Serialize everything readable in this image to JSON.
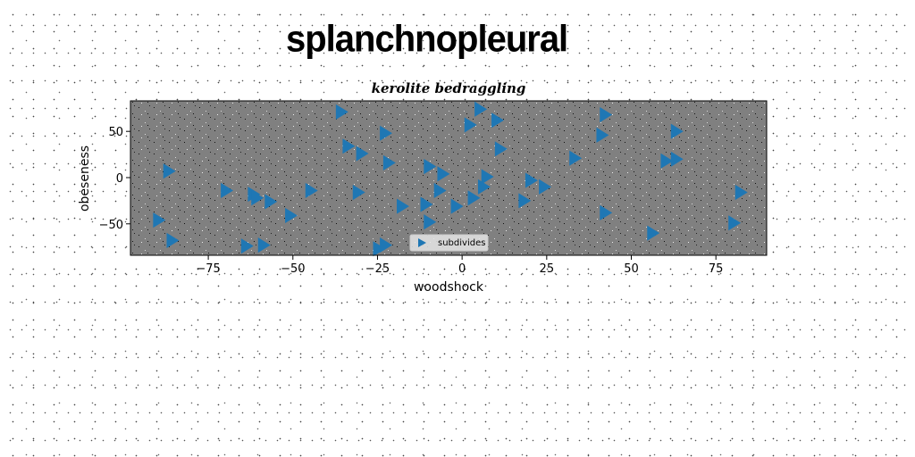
{
  "page": {
    "title": "splanchnopleural"
  },
  "chart_data": {
    "type": "scatter",
    "title": "kerolite bedraggling",
    "xlabel": "woodshock",
    "ylabel": "obeseness",
    "xlim": [
      -98,
      90
    ],
    "ylim": [
      -84,
      83
    ],
    "xticks": [
      -75,
      -50,
      -25,
      0,
      25,
      50,
      75
    ],
    "yticks": [
      -50,
      0,
      50
    ],
    "grid": false,
    "legend_position": "lower center",
    "marker": "triangle-right",
    "colors": {
      "series": "#1f77b4",
      "plot_background": "#808080"
    },
    "series": [
      {
        "name": "subdivides",
        "points": [
          [
            -36,
            71
          ],
          [
            5,
            74
          ],
          [
            10,
            62
          ],
          [
            42,
            68
          ],
          [
            2,
            57
          ],
          [
            -23,
            48
          ],
          [
            41,
            46
          ],
          [
            63,
            50
          ],
          [
            -34,
            34
          ],
          [
            -30,
            26
          ],
          [
            11,
            31
          ],
          [
            33,
            21
          ],
          [
            60,
            18
          ],
          [
            63,
            20
          ],
          [
            -87,
            7
          ],
          [
            -22,
            16
          ],
          [
            -10,
            12
          ],
          [
            -6,
            4
          ],
          [
            7,
            1
          ],
          [
            20,
            -3
          ],
          [
            24,
            -10
          ],
          [
            6,
            -10
          ],
          [
            -7,
            -14
          ],
          [
            -45,
            -14
          ],
          [
            -31,
            -16
          ],
          [
            -70,
            -14
          ],
          [
            -62,
            -18
          ],
          [
            -61,
            -22
          ],
          [
            -57,
            -26
          ],
          [
            82,
            -16
          ],
          [
            -11,
            -29
          ],
          [
            -18,
            -31
          ],
          [
            -2,
            -31
          ],
          [
            3,
            -22
          ],
          [
            18,
            -25
          ],
          [
            -51,
            -41
          ],
          [
            -90,
            -46
          ],
          [
            -10,
            -48
          ],
          [
            42,
            -38
          ],
          [
            80,
            -49
          ],
          [
            56,
            -60
          ],
          [
            -86,
            -68
          ],
          [
            -64,
            -74
          ],
          [
            -59,
            -73
          ],
          [
            -25,
            -77
          ],
          [
            -23,
            -73
          ]
        ]
      }
    ]
  }
}
